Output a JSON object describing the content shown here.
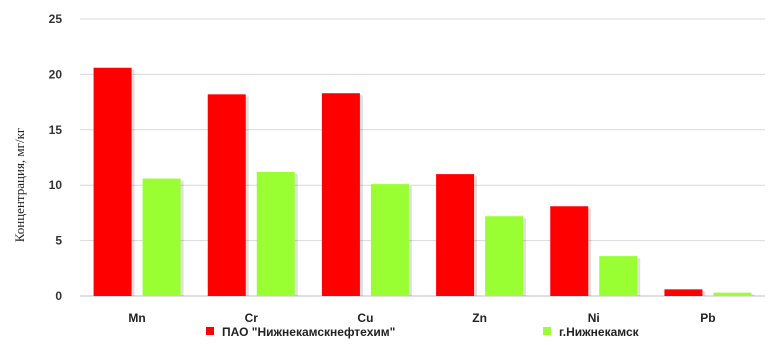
{
  "chart_data": {
    "type": "bar",
    "categories": [
      "Mn",
      "Cr",
      "Cu",
      "Zn",
      "Ni",
      "Pb"
    ],
    "series": [
      {
        "name": "ПАО \"Нижнекамскнефтехим\"",
        "color": "#ff0000",
        "values": [
          20.6,
          18.2,
          18.3,
          11.0,
          8.1,
          0.6
        ]
      },
      {
        "name": "г.Нижнекамск",
        "color": "#99ff33",
        "values": [
          10.6,
          11.2,
          10.1,
          7.2,
          3.6,
          0.3
        ]
      }
    ],
    "title": "",
    "xlabel": "",
    "ylabel": "Концентрация, мг/кг",
    "ylim": [
      0,
      25
    ],
    "yticks": [
      0,
      5,
      10,
      15,
      20,
      25
    ],
    "grid": true,
    "legend_position": "bottom"
  }
}
